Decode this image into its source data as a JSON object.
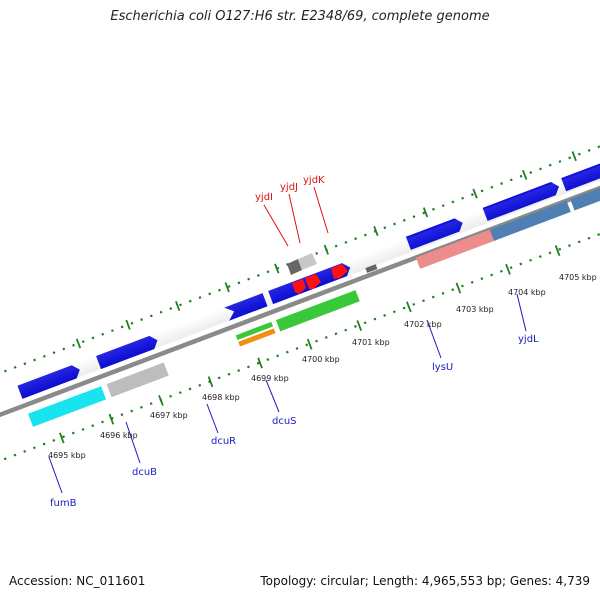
{
  "title": "Escherichia coli O127:H6 str. E2348/69, complete genome",
  "footer": {
    "accession": "Accession: NC_011601",
    "topology": "Topology: circular; Length: 4,965,553 bp; Genes: 4,739"
  },
  "colors": {
    "blue": "#1010e0",
    "steel": "#4f7fb3",
    "cyan": "#18e3ee",
    "gray": "#bdbdbd",
    "darkgray": "#666666",
    "green": "#38c838",
    "orange": "#f09010",
    "pink": "#ec8c8c",
    "red": "#ff1010",
    "tick": "#1f7f1f",
    "axis": "#888888",
    "label_blue": "#1a1abf",
    "label_red": "#e01010"
  },
  "ticks": [
    {
      "label": "4695 kbp"
    },
    {
      "label": "4696 kbp"
    },
    {
      "label": "4697 kbp"
    },
    {
      "label": "4698 kbp"
    },
    {
      "label": "4699 kbp"
    },
    {
      "label": "4700 kbp"
    },
    {
      "label": "4701 kbp"
    },
    {
      "label": "4702 kbp"
    },
    {
      "label": "4703 kbp"
    },
    {
      "label": "4704 kbp"
    },
    {
      "label": "4705 kbp"
    }
  ],
  "gene_labels": {
    "fumB": "fumB",
    "dcuB": "dcuB",
    "dcuR": "dcuR",
    "dcuS": "dcuS",
    "lysU": "lysU",
    "yjdL": "yjdL",
    "yjdI": "yjdI",
    "yjdJ": "yjdJ",
    "yjdK": "yjdK"
  }
}
